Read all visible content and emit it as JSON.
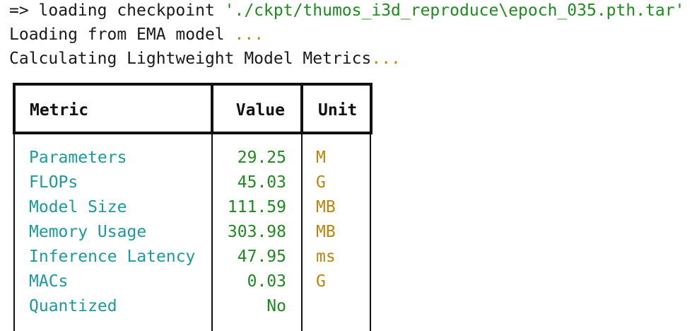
{
  "log_lines": {
    "line1_prefix": "=> loading checkpoint ",
    "line1_path": "'./ckpt/thumos_i3d_reproduce\\epoch_035.pth.tar'",
    "line2_text": "Loading from EMA model ",
    "line2_dots": "...",
    "line3_text": "Calculating Lightweight Model Metrics",
    "line3_dots": "..."
  },
  "table": {
    "headers": [
      "Metric",
      "Value",
      "Unit"
    ],
    "rows": [
      {
        "metric": "Parameters",
        "value": "29.25",
        "unit": "M"
      },
      {
        "metric": "FLOPs",
        "value": "45.03",
        "unit": "G"
      },
      {
        "metric": "Model Size",
        "value": "111.59",
        "unit": "MB"
      },
      {
        "metric": "Memory Usage",
        "value": "303.98",
        "unit": "MB"
      },
      {
        "metric": "Inference Latency",
        "value": "47.95",
        "unit": "ms"
      },
      {
        "metric": "MACs",
        "value": "0.03",
        "unit": "G"
      },
      {
        "metric": "Quantized",
        "value": "No",
        "unit": ""
      }
    ]
  },
  "colors": {
    "metric": "#1a9a9a",
    "value": "#1f8a1f",
    "unit": "#b8860b"
  }
}
